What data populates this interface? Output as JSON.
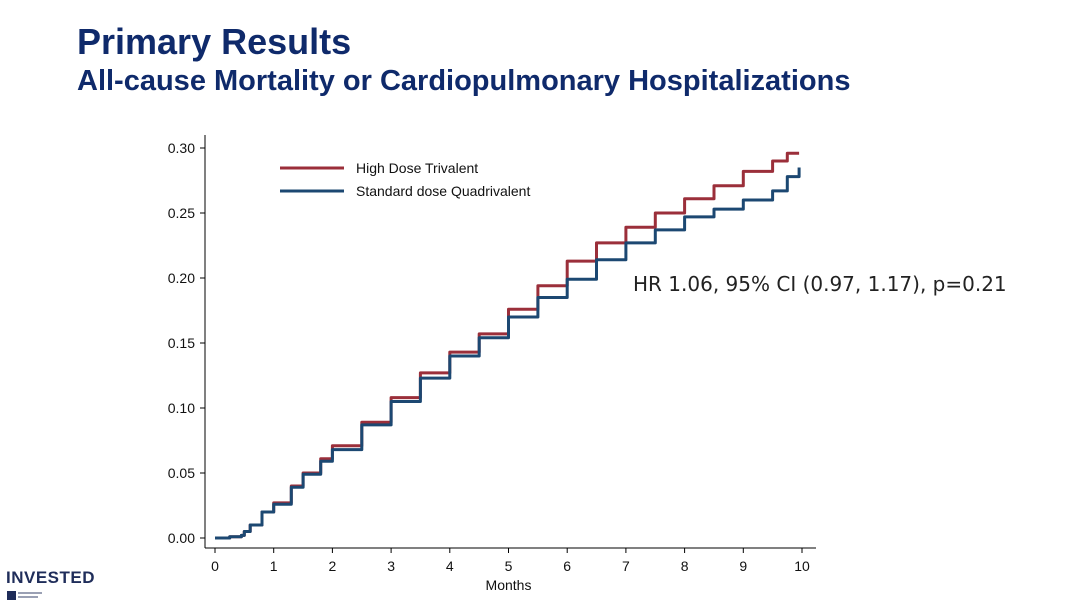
{
  "slide": {
    "title": "Primary Results",
    "subtitle": "All-cause Mortality or Cardiopulmonary Hospitalizations",
    "annotation": "HR 1.06, 95% CI (0.97, 1.17), p=0.21",
    "logo_text": "INVESTED"
  },
  "colors": {
    "title": "#0f2a6b",
    "high_dose": "#9b2f3a",
    "standard_dose": "#1c4872"
  },
  "chart_data": {
    "type": "line",
    "title": "",
    "xlabel": "Months",
    "ylabel": "",
    "xlim": [
      0,
      10
    ],
    "ylim": [
      0,
      0.3
    ],
    "xticks": [
      "0",
      "1",
      "2",
      "3",
      "4",
      "5",
      "6",
      "7",
      "8",
      "9",
      "10"
    ],
    "yticks": [
      "0.00",
      "0.05",
      "0.10",
      "0.15",
      "0.20",
      "0.25",
      "0.30"
    ],
    "legend_position": "top-left",
    "grid": false,
    "series": [
      {
        "name": "High Dose Trivalent",
        "color": "#9b2f3a",
        "x": [
          0,
          0.25,
          0.45,
          0.5,
          0.6,
          0.8,
          1.0,
          1.3,
          1.5,
          1.8,
          2.0,
          2.5,
          3.0,
          3.5,
          4.0,
          4.5,
          5.0,
          5.5,
          6.0,
          6.5,
          7.0,
          7.5,
          8.0,
          8.5,
          9.0,
          9.5,
          9.75,
          9.95
        ],
        "y": [
          0,
          0.001,
          0.002,
          0.005,
          0.01,
          0.02,
          0.027,
          0.04,
          0.05,
          0.061,
          0.071,
          0.089,
          0.108,
          0.127,
          0.143,
          0.157,
          0.176,
          0.194,
          0.213,
          0.227,
          0.239,
          0.25,
          0.261,
          0.271,
          0.282,
          0.29,
          0.296,
          0.296
        ]
      },
      {
        "name": "Standard dose Quadrivalent",
        "color": "#1c4872",
        "x": [
          0,
          0.25,
          0.45,
          0.5,
          0.6,
          0.8,
          1.0,
          1.3,
          1.5,
          1.8,
          2.0,
          2.5,
          3.0,
          3.5,
          4.0,
          4.5,
          5.0,
          5.5,
          6.0,
          6.5,
          7.0,
          7.5,
          8.0,
          8.5,
          9.0,
          9.5,
          9.75,
          9.95
        ],
        "y": [
          0,
          0.001,
          0.002,
          0.005,
          0.01,
          0.02,
          0.026,
          0.039,
          0.049,
          0.059,
          0.068,
          0.087,
          0.105,
          0.123,
          0.14,
          0.154,
          0.17,
          0.185,
          0.199,
          0.214,
          0.227,
          0.237,
          0.247,
          0.253,
          0.26,
          0.267,
          0.278,
          0.285
        ]
      }
    ]
  }
}
